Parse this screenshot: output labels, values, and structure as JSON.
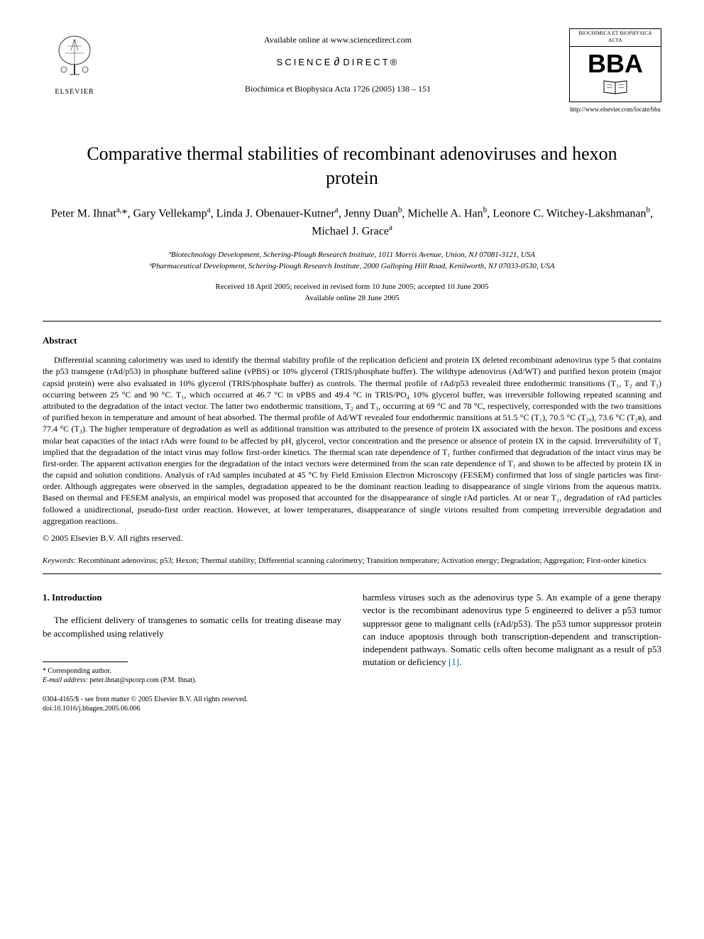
{
  "header": {
    "available_online": "Available online at www.sciencedirect.com",
    "science_direct": "SCIENCE",
    "science_direct2": "DIRECT®",
    "journal_ref": "Biochimica et Biophysica Acta 1726 (2005) 138 – 151",
    "elsevier_label": "ELSEVIER",
    "bba_top": "BIOCHIMICA ET BIOPHYSICA ACTA",
    "bba_letters": "BBA",
    "bba_url": "http://www.elsevier.com/locate/bba"
  },
  "title": "Comparative thermal stabilities of recombinant adenoviruses and hexon protein",
  "authors_html": "Peter M. Ihnat<sup>a,</sup>*, Gary Vellekamp<sup>a</sup>, Linda J. Obenauer-Kutner<sup>a</sup>, Jenny Duan<sup>b</sup>, Michelle A. Han<sup>b</sup>, Leonore C. Witchey-Lakshmanan<sup>b</sup>, Michael J. Grace<sup>a</sup>",
  "affiliations": {
    "a": "ªBiotechnology Development, Schering-Plough Research Institute, 1011 Morris Avenue, Union, NJ 07081-3121, USA",
    "b": "ᵇPharmaceutical Development, Schering-Plough Research Institute, 2000 Galloping Hill Road, Kenilworth, NJ 07033-0530, USA"
  },
  "dates": {
    "received": "Received 18 April 2005; received in revised form 10 June 2005; accepted 10 June 2005",
    "available": "Available online 28 June 2005"
  },
  "abstract": {
    "heading": "Abstract",
    "body": "Differential scanning calorimetry was used to identify the thermal stability profile of the replication deficient and protein IX deleted recombinant adenovirus type 5 that contains the p53 transgene (rAd/p53) in phosphate buffered saline (vPBS) or 10% glycerol (TRIS/phosphate buffer). The wildtype adenovirus (Ad/WT) and purified hexon protein (major capsid protein) were also evaluated in 10% glycerol (TRIS/phosphate buffer) as controls. The thermal profile of rAd/p53 revealed three endothermic transitions (T₁, T₂ and T₃) occurring between 25 °C and 90 °C. T₁, which occurred at 46.7 °C in vPBS and 49.4 °C in TRIS/PO₄ 10% glycerol buffer, was irreversible following repeated scanning and attributed to the degradation of the intact vector. The latter two endothermic transitions, T₂ and T₃, occurring at 69 °C and 78 °C, respectively, corresponded with the two transitions of purified hexon in temperature and amount of heat absorbed. The thermal profile of Ad/WT revealed four endothermic transitions at 51.5 °C (T₁), 70.5 °C (T₂ₐ), 73.6 °C (T₂в), and 77.4 °C (T₃). The higher temperature of degradation as well as additional transition was attributed to the presence of protein IX associated with the hexon. The positions and excess molar heat capacities of the intact rAds were found to be affected by pH, glycerol, vector concentration and the presence or absence of protein IX in the capsid. Irreversibility of T₁ implied that the degradation of the intact virus may follow first-order kinetics. The thermal scan rate dependence of T₁ further confirmed that degradation of the intact virus may be first-order. The apparent activation energies for the degradation of the intact vectors were determined from the scan rate dependence of T₁ and shown to be affected by protein IX in the capsid and solution conditions. Analysis of rAd samples incubated at 45 °C by Field Emission Electron Microscopy (FESEM) confirmed that loss of single particles was first-order. Although aggregates were observed in the samples, degradation appeared to be the dominant reaction leading to disappearance of single virions from the aqueous matrix. Based on thermal and FESEM analysis, an empirical model was proposed that accounted for the disappearance of single rAd particles. At or near T₁, degradation of rAd particles followed a unidirectional, pseudo-first order reaction. However, at lower temperatures, disappearance of single virions resulted from competing irreversible degradation and aggregation reactions.",
    "copyright": "© 2005 Elsevier B.V. All rights reserved."
  },
  "keywords": {
    "label": "Keywords:",
    "text": " Recombinant adenovirus; p53; Hexon; Thermal stability; Differential scanning calorimetry; Transition temperature; Activation energy; Degradation; Aggregation; First-order kinetics"
  },
  "intro": {
    "heading": "1. Introduction",
    "col1": "The efficient delivery of transgenes to somatic cells for treating disease may be accomplished using relatively",
    "col2_part1": "harmless viruses such as the adenovirus type 5. An example of a gene therapy vector is the recombinant adenovirus type 5 engineered to deliver a p53 tumor suppressor gene to malignant cells (rAd/p53). The p53 tumor suppressor protein can induce apoptosis through both transcription-dependent and transcription-independent pathways. Somatic cells often become malignant as a result of p53 mutation or deficiency ",
    "ref1": "[1]",
    "col2_part2": "."
  },
  "footnote": {
    "corr": "* Corresponding author.",
    "email_label": "E-mail address:",
    "email": " peter.ihnat@spcorp.com (P.M. Ihnat)."
  },
  "footer": {
    "line1": "0304-4165/$ - see front matter © 2005 Elsevier B.V. All rights reserved.",
    "line2": "doi:10.1016/j.bbagen.2005.06.006"
  },
  "colors": {
    "text": "#000000",
    "background": "#ffffff",
    "link": "#0066cc"
  }
}
